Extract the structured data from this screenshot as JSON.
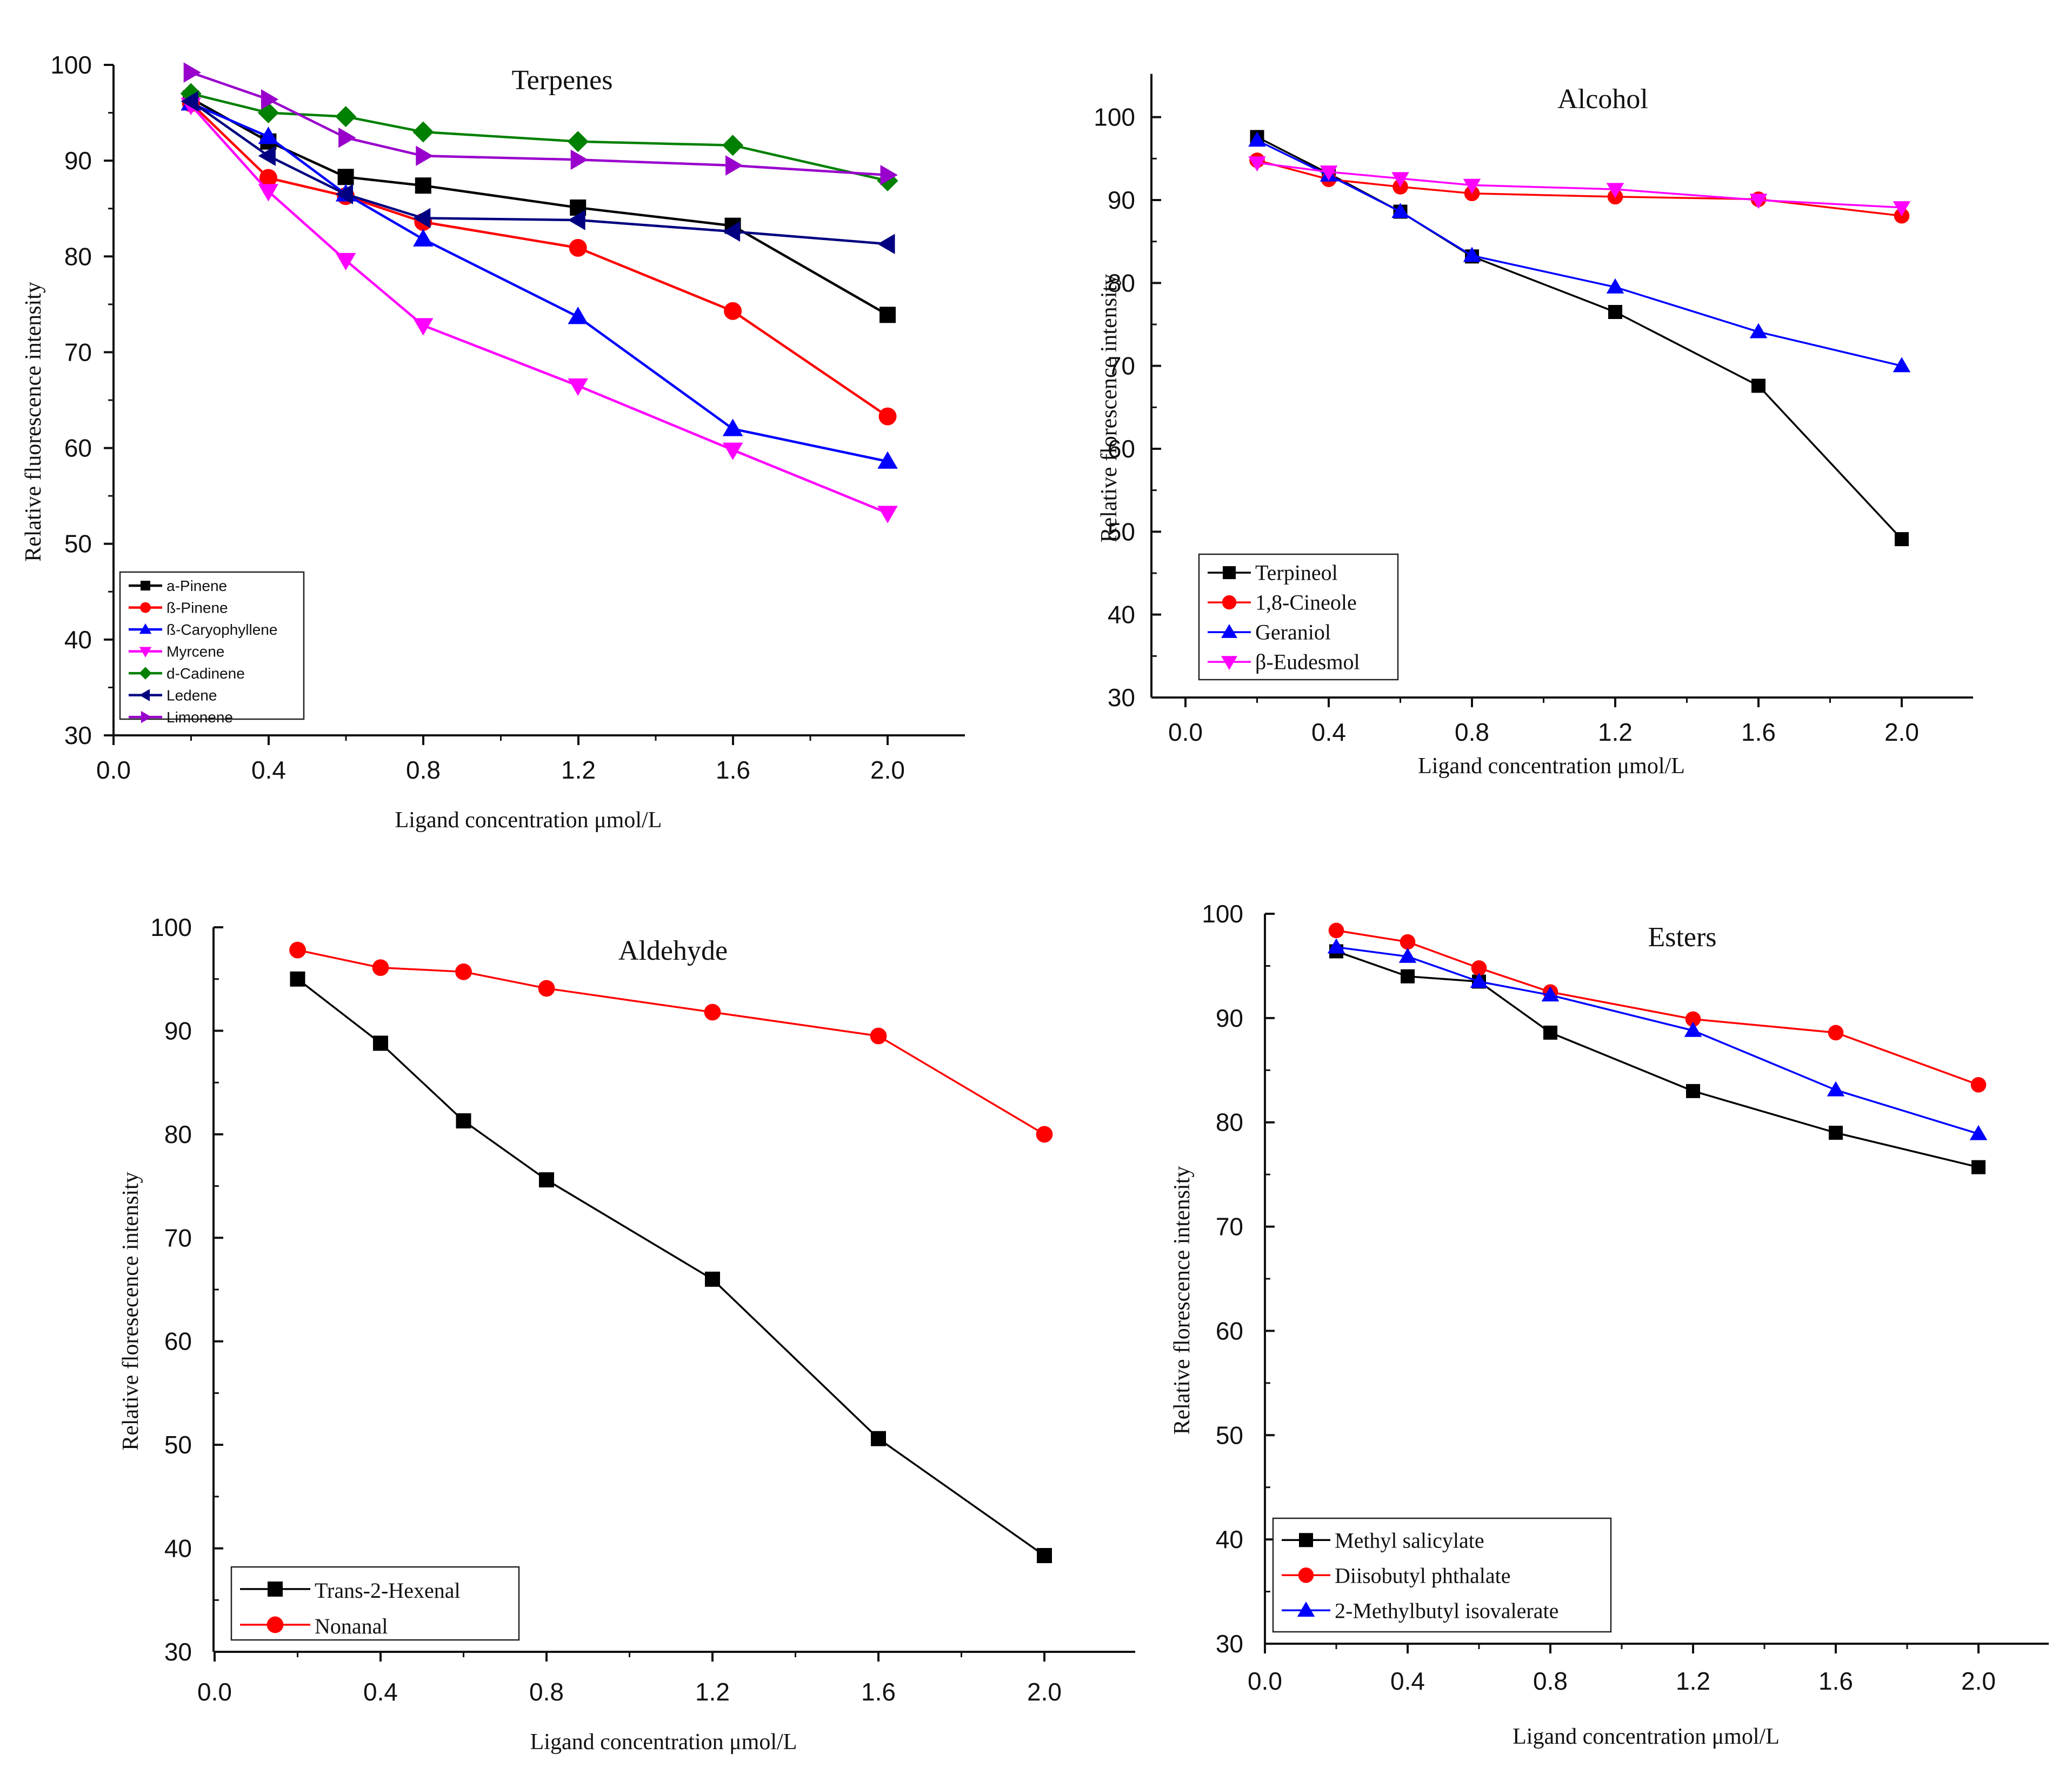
{
  "chart_data": [
    {
      "type": "line",
      "title": "Terpenes",
      "xlabel": "Ligand concentration μmol/L",
      "ylabel": "Relative fluorescence intensity",
      "xlim": [
        0.0,
        2.2
      ],
      "ylim": [
        30,
        100
      ],
      "xticks": [
        "0.0",
        "0.4",
        "0.8",
        "1.2",
        "1.6",
        "2.0"
      ],
      "yticks": [
        "30",
        "40",
        "50",
        "60",
        "70",
        "80",
        "90",
        "100"
      ],
      "legend_position": "bottom-left",
      "x": [
        0.2,
        0.4,
        0.6,
        0.8,
        1.2,
        1.6,
        2.0
      ],
      "series": [
        {
          "name": "a-Pinene",
          "color": "#000000",
          "marker": "square",
          "values": [
            96.5,
            92.0,
            88.3,
            87.4,
            85.1,
            83.2,
            73.9
          ]
        },
        {
          "name": "ß-Pinene",
          "color": "#ff0000",
          "marker": "circle",
          "values": [
            96.0,
            88.2,
            86.3,
            83.6,
            80.9,
            74.3,
            63.3
          ]
        },
        {
          "name": "ß-Caryophyllene",
          "color": "#0000ff",
          "marker": "triangle-up",
          "values": [
            96.0,
            92.5,
            86.5,
            81.8,
            73.7,
            62.0,
            58.6
          ]
        },
        {
          "name": "Myrcene",
          "color": "#ff00ff",
          "marker": "triangle-down",
          "values": [
            95.8,
            86.8,
            79.6,
            72.8,
            66.5,
            59.8,
            53.2
          ]
        },
        {
          "name": "d-Cadinene",
          "color": "#008000",
          "marker": "diamond",
          "values": [
            97.0,
            95.0,
            94.6,
            93.0,
            92.0,
            91.6,
            87.9
          ]
        },
        {
          "name": "Ledene",
          "color": "#000080",
          "marker": "triangle-left",
          "values": [
            96.2,
            90.5,
            86.5,
            84.0,
            83.8,
            82.6,
            81.3
          ]
        },
        {
          "name": "Limonene",
          "color": "#9900cc",
          "marker": "triangle-right",
          "values": [
            99.2,
            96.4,
            92.4,
            90.5,
            90.1,
            89.5,
            88.5
          ]
        }
      ]
    },
    {
      "type": "line",
      "title": "Alcohol",
      "xlabel": "Ligand concentration μmol/L",
      "ylabel": "Relative florescence intensity",
      "xlim": [
        0.0,
        2.1
      ],
      "ylim": [
        30,
        105
      ],
      "xticks": [
        "0.0",
        "0.4",
        "0.8",
        "1.2",
        "1.6",
        "2.0"
      ],
      "yticks": [
        "30",
        "40",
        "50",
        "60",
        "70",
        "80",
        "90",
        "100"
      ],
      "legend_position": "bottom-left",
      "x": [
        0.2,
        0.4,
        0.6,
        0.8,
        1.2,
        1.6,
        2.0
      ],
      "series": [
        {
          "name": "Terpineol",
          "color": "#000000",
          "marker": "square",
          "values": [
            97.6,
            93.2,
            88.6,
            83.2,
            76.5,
            67.6,
            49.1
          ]
        },
        {
          "name": "1,8-Cineole",
          "color": "#ff0000",
          "marker": "circle",
          "values": [
            94.8,
            92.5,
            91.6,
            90.8,
            90.4,
            90.1,
            88.1
          ]
        },
        {
          "name": "Geraniol",
          "color": "#0000ff",
          "marker": "triangle-up",
          "values": [
            97.2,
            93.0,
            88.6,
            83.3,
            79.5,
            74.1,
            70.0
          ]
        },
        {
          "name": "β-Eudesmol",
          "color": "#ff00ff",
          "marker": "triangle-down",
          "values": [
            94.5,
            93.4,
            92.6,
            91.8,
            91.3,
            90.0,
            89.1
          ]
        }
      ]
    },
    {
      "type": "line",
      "title": "Aldehyde",
      "xlabel": "Ligand concentration μmol/L",
      "ylabel": "Relative floresecence intensity",
      "xlim": [
        0.0,
        2.2
      ],
      "ylim": [
        30,
        100
      ],
      "xticks": [
        "0.0",
        "0.4",
        "0.8",
        "1.2",
        "1.6",
        "2.0"
      ],
      "yticks": [
        "30",
        "40",
        "50",
        "60",
        "70",
        "80",
        "90",
        "100"
      ],
      "legend_position": "bottom-left",
      "x": [
        0.2,
        0.4,
        0.6,
        0.8,
        1.2,
        1.6,
        2.0
      ],
      "series": [
        {
          "name": "Trans-2-Hexenal",
          "color": "#000000",
          "marker": "square",
          "values": [
            95.0,
            88.8,
            81.3,
            75.6,
            66.0,
            50.6,
            39.3
          ]
        },
        {
          "name": "Nonanal",
          "color": "#ff0000",
          "marker": "circle",
          "values": [
            97.8,
            96.1,
            95.7,
            94.1,
            91.8,
            89.5,
            80.0
          ]
        }
      ]
    },
    {
      "type": "line",
      "title": "Esters",
      "xlabel": "Ligand concentration μmol/L",
      "ylabel": "Relative florescence intensity",
      "xlim": [
        0.0,
        2.1
      ],
      "ylim": [
        30,
        100
      ],
      "xticks": [
        "0.0",
        "0.4",
        "0.8",
        "1.2",
        "1.6",
        "2.0"
      ],
      "yticks": [
        "30",
        "40",
        "50",
        "60",
        "70",
        "80",
        "90",
        "100"
      ],
      "legend_position": "bottom-left",
      "x": [
        0.2,
        0.4,
        0.6,
        0.8,
        1.2,
        1.6,
        2.0
      ],
      "series": [
        {
          "name": "Methyl salicylate",
          "color": "#000000",
          "marker": "square",
          "values": [
            96.4,
            94.0,
            93.5,
            88.6,
            83.0,
            79.0,
            75.7
          ]
        },
        {
          "name": "Diisobutyl phthalate",
          "color": "#ff0000",
          "marker": "circle",
          "values": [
            98.4,
            97.3,
            94.8,
            92.5,
            89.9,
            88.6,
            83.6
          ]
        },
        {
          "name": "2-Methylbutyl isovalerate",
          "color": "#0000ff",
          "marker": "triangle-up",
          "values": [
            96.8,
            95.9,
            93.5,
            92.2,
            88.8,
            83.1,
            78.9
          ]
        }
      ]
    }
  ]
}
